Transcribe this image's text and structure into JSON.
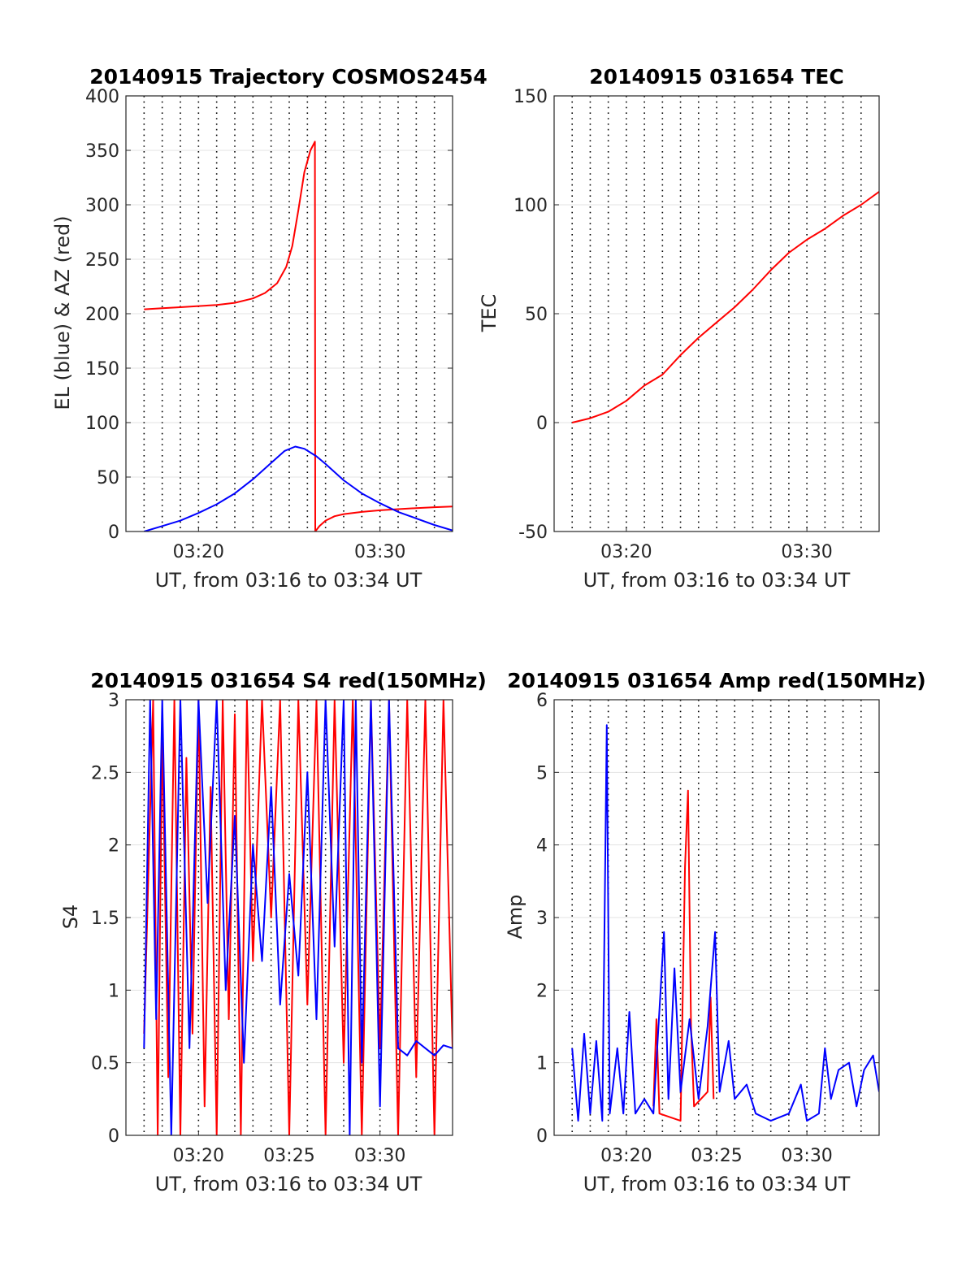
{
  "figure": {
    "panels": 4
  },
  "chart_data": [
    {
      "id": "trajectory",
      "type": "line",
      "title": "20140915 Trajectory COSMOS2454",
      "xlabel": "UT, from 03:16 to 03:34 UT",
      "ylabel": "EL (blue) & AZ (red)",
      "xlim": [
        "03:16",
        "03:34"
      ],
      "ylim": [
        0,
        400
      ],
      "yticks": [
        "0",
        "50",
        "100",
        "150",
        "200",
        "250",
        "300",
        "350",
        "400"
      ],
      "xticks": [
        {
          "t": "03:20",
          "label": "03:20"
        },
        {
          "t": "03:30",
          "label": "03:30"
        }
      ],
      "grid": true,
      "series": [
        {
          "key": "AZ",
          "color": "#ff0000",
          "points": [
            [
              "03:17:00",
              204
            ],
            [
              "03:18:00",
              205
            ],
            [
              "03:19:00",
              206
            ],
            [
              "03:20:00",
              207
            ],
            [
              "03:21:00",
              208
            ],
            [
              "03:22:00",
              210
            ],
            [
              "03:23:00",
              214
            ],
            [
              "03:23:40",
              219
            ],
            [
              "03:24:20",
              228
            ],
            [
              "03:24:50",
              243
            ],
            [
              "03:25:10",
              262
            ],
            [
              "03:25:30",
              295
            ],
            [
              "03:25:50",
              330
            ],
            [
              "03:26:10",
              350
            ],
            [
              "03:26:25",
              358
            ],
            [
              "03:26:26",
              0
            ],
            [
              "03:26:40",
              5
            ],
            [
              "03:27:00",
              10
            ],
            [
              "03:27:30",
              14
            ],
            [
              "03:28:00",
              16
            ],
            [
              "03:29:00",
              18
            ],
            [
              "03:30:00",
              19.5
            ],
            [
              "03:31:00",
              20.5
            ],
            [
              "03:32:00",
              21.5
            ],
            [
              "03:33:00",
              22.3
            ],
            [
              "03:34:00",
              23
            ]
          ]
        },
        {
          "key": "EL",
          "color": "#0000ff",
          "points": [
            [
              "03:17:00",
              0
            ],
            [
              "03:18:00",
              5
            ],
            [
              "03:19:00",
              10
            ],
            [
              "03:20:00",
              17
            ],
            [
              "03:21:00",
              25
            ],
            [
              "03:22:00",
              35
            ],
            [
              "03:23:00",
              48
            ],
            [
              "03:24:00",
              63
            ],
            [
              "03:24:45",
              74
            ],
            [
              "03:25:20",
              78
            ],
            [
              "03:25:50",
              76
            ],
            [
              "03:26:30",
              69
            ],
            [
              "03:27:00",
              62
            ],
            [
              "03:28:00",
              47
            ],
            [
              "03:29:00",
              35
            ],
            [
              "03:30:00",
              26
            ],
            [
              "03:31:00",
              18
            ],
            [
              "03:32:00",
              12
            ],
            [
              "03:33:00",
              6
            ],
            [
              "03:34:00",
              1
            ]
          ]
        }
      ]
    },
    {
      "id": "tec",
      "type": "line",
      "title": "20140915 031654 TEC",
      "xlabel": "UT, from 03:16 to 03:34 UT",
      "ylabel": "TEC",
      "xlim": [
        "03:16",
        "03:34"
      ],
      "ylim": [
        -50,
        150
      ],
      "yticks": [
        "-50",
        "0",
        "50",
        "100",
        "150"
      ],
      "xticks": [
        {
          "t": "03:20",
          "label": "03:20"
        },
        {
          "t": "03:30",
          "label": "03:30"
        }
      ],
      "grid": true,
      "series": [
        {
          "key": "TEC",
          "color": "#ff0000",
          "points": [
            [
              "03:17:00",
              0
            ],
            [
              "03:18:00",
              2
            ],
            [
              "03:19:00",
              5
            ],
            [
              "03:20:00",
              10
            ],
            [
              "03:21:00",
              17
            ],
            [
              "03:22:00",
              22
            ],
            [
              "03:23:00",
              31
            ],
            [
              "03:24:00",
              39
            ],
            [
              "03:25:00",
              46
            ],
            [
              "03:26:00",
              53
            ],
            [
              "03:27:00",
              61
            ],
            [
              "03:28:00",
              70
            ],
            [
              "03:29:00",
              78
            ],
            [
              "03:30:00",
              84
            ],
            [
              "03:31:00",
              89
            ],
            [
              "03:32:00",
              95
            ],
            [
              "03:33:00",
              100
            ],
            [
              "03:34:00",
              106
            ]
          ]
        }
      ]
    },
    {
      "id": "s4",
      "type": "line",
      "title": "20140915 031654 S4 red(150MHz)",
      "xlabel": "UT, from 03:16 to 03:34 UT",
      "ylabel": "S4",
      "xlim": [
        "03:16",
        "03:34"
      ],
      "ylim": [
        0,
        3
      ],
      "yticks": [
        "0",
        "0.5",
        "1",
        "1.5",
        "2",
        "2.5",
        "3"
      ],
      "xticks": [
        {
          "t": "03:20",
          "label": "03:20"
        },
        {
          "t": "03:25",
          "label": "03:25"
        },
        {
          "t": "03:30",
          "label": "03:30"
        }
      ],
      "grid": true,
      "series": [
        {
          "key": "red",
          "color": "#ff0000",
          "points": [
            [
              "03:17:00",
              0.7
            ],
            [
              "03:17:30",
              3
            ],
            [
              "03:17:45",
              0
            ],
            [
              "03:18:00",
              2.8
            ],
            [
              "03:18:20",
              0.4
            ],
            [
              "03:18:40",
              3
            ],
            [
              "03:19:00",
              0
            ],
            [
              "03:19:20",
              2.6
            ],
            [
              "03:19:40",
              0.7
            ],
            [
              "03:20:00",
              3
            ],
            [
              "03:20:20",
              0.2
            ],
            [
              "03:20:40",
              2.4
            ],
            [
              "03:21:00",
              0
            ],
            [
              "03:21:20",
              3
            ],
            [
              "03:21:40",
              0.8
            ],
            [
              "03:22:00",
              2.9
            ],
            [
              "03:22:20",
              0
            ],
            [
              "03:22:40",
              3
            ],
            [
              "03:23:00",
              1.2
            ],
            [
              "03:23:30",
              3
            ],
            [
              "03:24:00",
              1.5
            ],
            [
              "03:24:30",
              3
            ],
            [
              "03:25:00",
              0
            ],
            [
              "03:25:30",
              3
            ],
            [
              "03:26:00",
              0.9
            ],
            [
              "03:26:30",
              3
            ],
            [
              "03:27:00",
              0
            ],
            [
              "03:27:30",
              3
            ],
            [
              "03:28:00",
              0.5
            ],
            [
              "03:28:30",
              3
            ],
            [
              "03:29:00",
              0
            ],
            [
              "03:29:30",
              3
            ],
            [
              "03:30:00",
              0.6
            ],
            [
              "03:30:30",
              3
            ],
            [
              "03:31:00",
              0
            ],
            [
              "03:31:30",
              3
            ],
            [
              "03:32:00",
              0.4
            ],
            [
              "03:32:30",
              3
            ],
            [
              "03:33:00",
              0
            ],
            [
              "03:33:30",
              3
            ],
            [
              "03:34:00",
              0.6
            ]
          ]
        },
        {
          "key": "blue",
          "color": "#0000ff",
          "points": [
            [
              "03:17:00",
              0.6
            ],
            [
              "03:17:20",
              3
            ],
            [
              "03:17:40",
              0.8
            ],
            [
              "03:18:00",
              3
            ],
            [
              "03:18:30",
              0
            ],
            [
              "03:19:00",
              3
            ],
            [
              "03:19:30",
              0.6
            ],
            [
              "03:20:00",
              3
            ],
            [
              "03:20:30",
              1.6
            ],
            [
              "03:21:00",
              3
            ],
            [
              "03:21:30",
              1.0
            ],
            [
              "03:22:00",
              2.2
            ],
            [
              "03:22:30",
              0.5
            ],
            [
              "03:23:00",
              2.0
            ],
            [
              "03:23:30",
              1.2
            ],
            [
              "03:24:00",
              2.4
            ],
            [
              "03:24:30",
              0.9
            ],
            [
              "03:25:00",
              1.8
            ],
            [
              "03:25:30",
              1.1
            ],
            [
              "03:26:00",
              2.5
            ],
            [
              "03:26:30",
              0.8
            ],
            [
              "03:27:00",
              3
            ],
            [
              "03:27:30",
              1.3
            ],
            [
              "03:28:00",
              3
            ],
            [
              "03:28:20",
              0
            ],
            [
              "03:28:40",
              3
            ],
            [
              "03:29:00",
              0.5
            ],
            [
              "03:29:30",
              3
            ],
            [
              "03:30:00",
              0.2
            ],
            [
              "03:30:30",
              3
            ],
            [
              "03:31:00",
              0.6
            ],
            [
              "03:31:30",
              0.55
            ],
            [
              "03:32:00",
              0.65
            ],
            [
              "03:32:30",
              0.6
            ],
            [
              "03:33:00",
              0.55
            ],
            [
              "03:33:30",
              0.62
            ],
            [
              "03:34:00",
              0.6
            ]
          ]
        }
      ]
    },
    {
      "id": "amp",
      "type": "line",
      "title": "20140915 031654 Amp red(150MHz)",
      "xlabel": "UT, from 03:16 to 03:34 UT",
      "ylabel": "Amp",
      "xlim": [
        "03:16",
        "03:34"
      ],
      "ylim": [
        0,
        6
      ],
      "yticks": [
        "0",
        "1",
        "2",
        "3",
        "4",
        "5",
        "6"
      ],
      "xticks": [
        {
          "t": "03:20",
          "label": "03:20"
        },
        {
          "t": "03:25",
          "label": "03:25"
        },
        {
          "t": "03:30",
          "label": "03:30"
        }
      ],
      "grid": true,
      "series": [
        {
          "key": "red",
          "color": "#ff0000",
          "points": [
            [
              "03:21:30",
              0.4
            ],
            [
              "03:21:40",
              1.6
            ],
            [
              "03:21:50",
              0.3
            ],
            [
              "03:23:00",
              0.2
            ],
            [
              "03:23:15",
              3.7
            ],
            [
              "03:23:25",
              4.75
            ],
            [
              "03:23:35",
              1.5
            ],
            [
              "03:23:45",
              0.4
            ],
            [
              "03:24:30",
              0.6
            ],
            [
              "03:24:40",
              1.9
            ],
            [
              "03:24:50",
              0.5
            ]
          ]
        },
        {
          "key": "blue",
          "color": "#0000ff",
          "points": [
            [
              "03:17:00",
              1.2
            ],
            [
              "03:17:20",
              0.2
            ],
            [
              "03:17:40",
              1.4
            ],
            [
              "03:18:00",
              0.3
            ],
            [
              "03:18:20",
              1.3
            ],
            [
              "03:18:40",
              0.2
            ],
            [
              "03:18:55",
              5.65
            ],
            [
              "03:19:05",
              0.3
            ],
            [
              "03:19:30",
              1.2
            ],
            [
              "03:19:50",
              0.3
            ],
            [
              "03:20:10",
              1.7
            ],
            [
              "03:20:30",
              0.3
            ],
            [
              "03:21:00",
              0.5
            ],
            [
              "03:21:30",
              0.3
            ],
            [
              "03:22:05",
              2.8
            ],
            [
              "03:22:20",
              0.5
            ],
            [
              "03:22:40",
              2.3
            ],
            [
              "03:23:00",
              0.6
            ],
            [
              "03:23:30",
              1.6
            ],
            [
              "03:24:00",
              0.5
            ],
            [
              "03:24:30",
              1.5
            ],
            [
              "03:24:55",
              2.8
            ],
            [
              "03:25:10",
              0.6
            ],
            [
              "03:25:40",
              1.3
            ],
            [
              "03:26:00",
              0.5
            ],
            [
              "03:26:40",
              0.7
            ],
            [
              "03:27:10",
              0.3
            ],
            [
              "03:28:00",
              0.2
            ],
            [
              "03:29:00",
              0.3
            ],
            [
              "03:29:40",
              0.7
            ],
            [
              "03:30:00",
              0.2
            ],
            [
              "03:30:40",
              0.3
            ],
            [
              "03:31:00",
              1.2
            ],
            [
              "03:31:20",
              0.5
            ],
            [
              "03:31:45",
              0.9
            ],
            [
              "03:32:20",
              1.0
            ],
            [
              "03:32:45",
              0.4
            ],
            [
              "03:33:10",
              0.9
            ],
            [
              "03:33:40",
              1.1
            ],
            [
              "03:34:00",
              0.6
            ]
          ]
        }
      ]
    }
  ]
}
